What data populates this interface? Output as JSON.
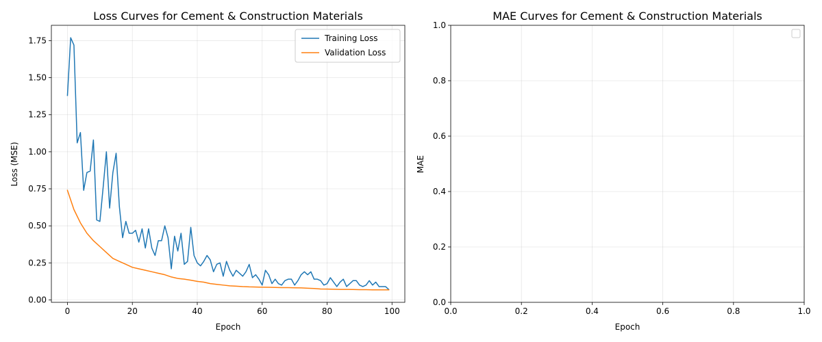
{
  "chart_data": [
    {
      "type": "line",
      "title": "Loss Curves for Cement & Construction Materials",
      "xlabel": "Epoch",
      "ylabel": "Loss (MSE)",
      "xlim": [
        -4.95,
        103.95
      ],
      "ylim": [
        -0.0163,
        1.8537
      ],
      "x_ticks": [
        0,
        20,
        40,
        60,
        80,
        100
      ],
      "y_ticks": [
        0.0,
        0.25,
        0.5,
        0.75,
        1.0,
        1.25,
        1.5,
        1.75
      ],
      "x_tick_labels": [
        "0",
        "20",
        "40",
        "60",
        "80",
        "100"
      ],
      "y_tick_labels": [
        "0.00",
        "0.25",
        "0.50",
        "0.75",
        "1.00",
        "1.25",
        "1.50",
        "1.75"
      ],
      "grid": true,
      "legend_position": "top-right",
      "series": [
        {
          "name": "Training Loss",
          "color": "#1f77b4",
          "x": [
            0,
            1,
            2,
            3,
            4,
            5,
            6,
            7,
            8,
            9,
            10,
            11,
            12,
            13,
            14,
            15,
            16,
            17,
            18,
            19,
            20,
            21,
            22,
            23,
            24,
            25,
            26,
            27,
            28,
            29,
            30,
            31,
            32,
            33,
            34,
            35,
            36,
            37,
            38,
            39,
            40,
            41,
            42,
            43,
            44,
            45,
            46,
            47,
            48,
            49,
            50,
            51,
            52,
            53,
            54,
            55,
            56,
            57,
            58,
            59,
            60,
            61,
            62,
            63,
            64,
            65,
            66,
            67,
            68,
            69,
            70,
            71,
            72,
            73,
            74,
            75,
            76,
            77,
            78,
            79,
            80,
            81,
            82,
            83,
            84,
            85,
            86,
            87,
            88,
            89,
            90,
            91,
            92,
            93,
            94,
            95,
            96,
            97,
            98,
            99
          ],
          "values": [
            1.38,
            1.77,
            1.72,
            1.06,
            1.13,
            0.74,
            0.86,
            0.87,
            1.08,
            0.54,
            0.53,
            0.76,
            1.0,
            0.62,
            0.86,
            0.99,
            0.63,
            0.42,
            0.53,
            0.45,
            0.45,
            0.47,
            0.39,
            0.48,
            0.35,
            0.48,
            0.35,
            0.3,
            0.4,
            0.4,
            0.5,
            0.42,
            0.21,
            0.43,
            0.33,
            0.45,
            0.24,
            0.26,
            0.49,
            0.3,
            0.25,
            0.23,
            0.26,
            0.3,
            0.27,
            0.19,
            0.24,
            0.25,
            0.16,
            0.26,
            0.2,
            0.16,
            0.2,
            0.18,
            0.16,
            0.19,
            0.24,
            0.15,
            0.17,
            0.14,
            0.1,
            0.2,
            0.17,
            0.11,
            0.14,
            0.11,
            0.1,
            0.13,
            0.14,
            0.14,
            0.1,
            0.13,
            0.17,
            0.19,
            0.17,
            0.19,
            0.14,
            0.14,
            0.13,
            0.1,
            0.11,
            0.15,
            0.12,
            0.09,
            0.12,
            0.14,
            0.09,
            0.11,
            0.13,
            0.13,
            0.1,
            0.09,
            0.1,
            0.13,
            0.1,
            0.12,
            0.09,
            0.09,
            0.09,
            0.07
          ]
        },
        {
          "name": "Validation Loss",
          "color": "#ff7f0e",
          "x": [
            0,
            2,
            4,
            6,
            8,
            10,
            12,
            14,
            16,
            18,
            20,
            22,
            24,
            26,
            28,
            30,
            32,
            34,
            36,
            38,
            40,
            42,
            44,
            46,
            48,
            50,
            52,
            54,
            56,
            58,
            60,
            62,
            64,
            66,
            68,
            70,
            72,
            74,
            76,
            78,
            80,
            82,
            84,
            86,
            88,
            90,
            92,
            94,
            96,
            98,
            99
          ],
          "values": [
            0.74,
            0.61,
            0.52,
            0.45,
            0.4,
            0.36,
            0.32,
            0.28,
            0.26,
            0.24,
            0.22,
            0.21,
            0.2,
            0.19,
            0.18,
            0.17,
            0.155,
            0.145,
            0.14,
            0.133,
            0.125,
            0.12,
            0.11,
            0.105,
            0.1,
            0.095,
            0.093,
            0.09,
            0.088,
            0.087,
            0.086,
            0.085,
            0.084,
            0.083,
            0.083,
            0.082,
            0.081,
            0.079,
            0.077,
            0.074,
            0.073,
            0.072,
            0.071,
            0.071,
            0.07,
            0.069,
            0.069,
            0.068,
            0.068,
            0.068,
            0.068
          ]
        }
      ]
    },
    {
      "type": "line",
      "title": "MAE Curves for Cement & Construction Materials",
      "xlabel": "Epoch",
      "ylabel": "MAE",
      "xlim": [
        0,
        1
      ],
      "ylim": [
        0,
        1
      ],
      "x_ticks": [
        0.0,
        0.2,
        0.4,
        0.6,
        0.8,
        1.0
      ],
      "y_ticks": [
        0.0,
        0.2,
        0.4,
        0.6,
        0.8,
        1.0
      ],
      "x_tick_labels": [
        "0.0",
        "0.2",
        "0.4",
        "0.6",
        "0.8",
        "1.0"
      ],
      "y_tick_labels": [
        "0.0",
        "0.2",
        "0.4",
        "0.6",
        "0.8",
        "1.0"
      ],
      "grid": true,
      "legend_position": "top-right",
      "legend_empty": true,
      "series": []
    }
  ]
}
